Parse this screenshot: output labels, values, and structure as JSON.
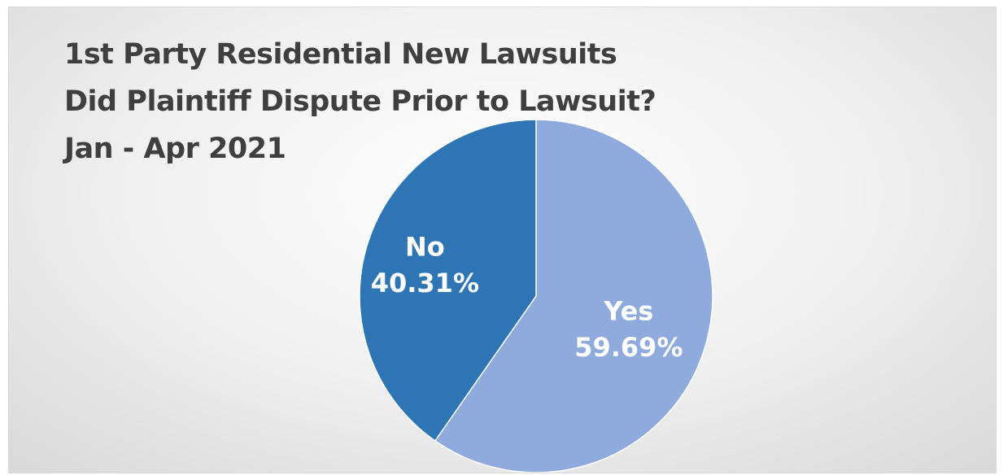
{
  "chart_data": {
    "type": "pie",
    "title": [
      "1st Party Residential New Lawsuits",
      "Did Plaintiff Dispute Prior to Lawsuit?",
      "Jan - Apr 2021"
    ],
    "categories": [
      "Yes",
      "No"
    ],
    "values": [
      59.69,
      40.31
    ],
    "value_labels": [
      "59.69%",
      "40.31%"
    ],
    "colors": [
      "#8faadc",
      "#2e75b6"
    ],
    "start": "12 o'clock, clockwise",
    "legend": "none"
  }
}
